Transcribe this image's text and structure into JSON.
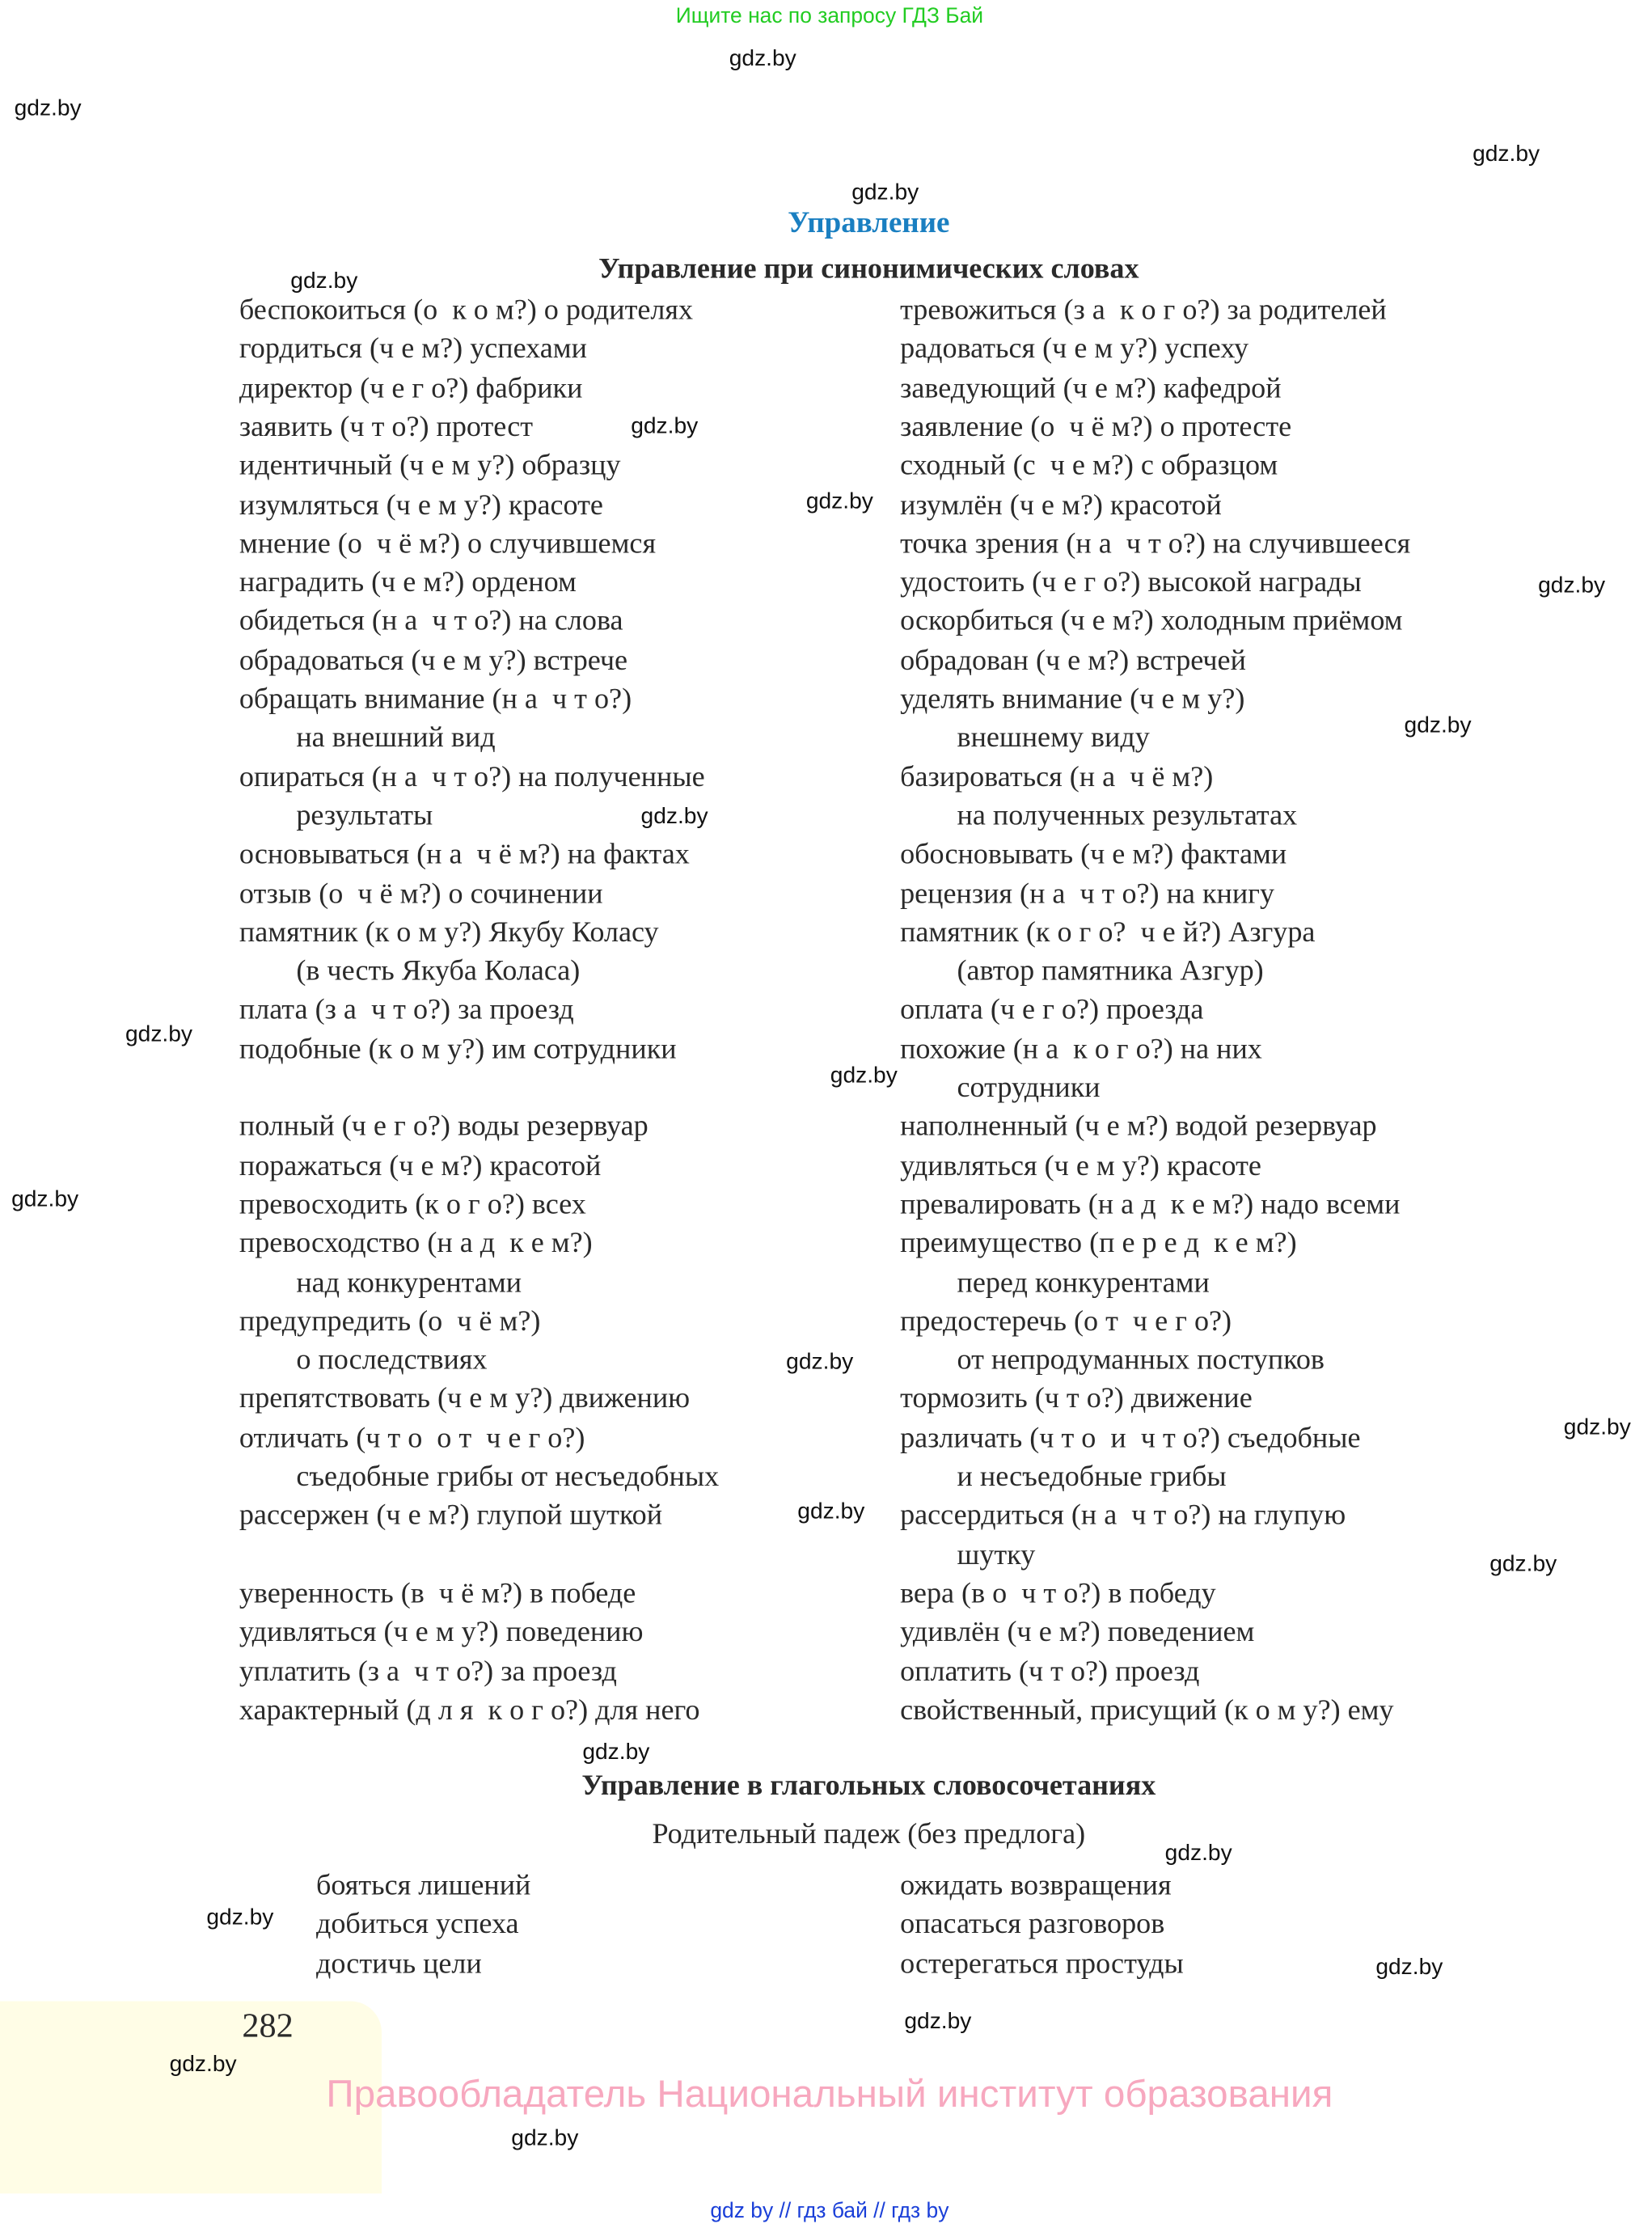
{
  "top_note": "Ищите нас по запросу ГДЗ Бай",
  "watermark": "gdz.by",
  "title": "Управление",
  "section1": {
    "heading": "Управление при синонимических словах",
    "rows": [
      {
        "l": "беспокоиться (о  к о м?) о родителях",
        "r": "тревожиться (з а  к о г о?) за родителей"
      },
      {
        "l": "гордиться (ч е м?) успехами",
        "r": "радоваться (ч е м у?) успеху"
      },
      {
        "l": "директор (ч е г о?) фабрики",
        "r": "заведующий (ч е м?) кафедрой"
      },
      {
        "l": "заявить (ч т о?) протест",
        "r": "заявление (о  ч ё м?) о протесте"
      },
      {
        "l": "идентичный (ч е м у?) образцу",
        "r": "сходный (с  ч е м?) с образцом"
      },
      {
        "l": "изумляться (ч е м у?) красоте",
        "r": "изумлён (ч е м?) красотой"
      },
      {
        "l": "мнение (о  ч ё м?) о случившемся",
        "r": "точка зрения (н а  ч т о?) на случившееся"
      },
      {
        "l": "наградить (ч е м?) орденом",
        "r": "удостоить (ч е г о?) высокой награды"
      },
      {
        "l": "обидеться (н а  ч т о?) на слова",
        "r": "оскорбиться (ч е м?) холодным приёмом"
      },
      {
        "l": "обрадоваться (ч е м у?) встрече",
        "r": "обрадован (ч е м?) встречей"
      },
      {
        "l": "обращать внимание (н а  ч т о?)",
        "r": "уделять внимание (ч е м у?)"
      },
      {
        "l": "на внешний вид",
        "r": "внешнему виду",
        "cont": true
      },
      {
        "l": "опираться (н а  ч т о?) на полученные",
        "r": "базироваться (н а  ч ё м?)"
      },
      {
        "l": "результаты",
        "r": "на полученных результатах",
        "cont": true
      },
      {
        "l": "основываться (н а  ч ё м?) на фактах",
        "r": "обосновывать (ч е м?) фактами"
      },
      {
        "l": "отзыв (о  ч ё м?) о сочинении",
        "r": "рецензия (н а  ч т о?) на книгу"
      },
      {
        "l": "памятник (к о м у?) Якубу Коласу",
        "r": "памятник (к о г о?  ч е й?) Азгура"
      },
      {
        "l": "(в честь Якуба Коласа)",
        "r": "(автор памятника Азгур)",
        "cont": true
      },
      {
        "l": "плата (з а  ч т о?) за проезд",
        "r": "оплата (ч е г о?) проезда"
      },
      {
        "l": "подобные (к о м у?) им сотрудники",
        "r": "похожие (н а  к о г о?) на них"
      },
      {
        "l": "",
        "r": "сотрудники",
        "cont": true
      },
      {
        "l": "полный (ч е г о?) воды резервуар",
        "r": "наполненный (ч е м?) водой резервуар"
      },
      {
        "l": "поражаться (ч е м?) красотой",
        "r": "удивляться (ч е м у?) красоте"
      },
      {
        "l": "превосходить (к о г о?) всех",
        "r": "превалировать (н а д  к е м?) надо всеми"
      },
      {
        "l": "превосходство (н а д  к е м?)",
        "r": "преимущество (п е р е д  к е м?)"
      },
      {
        "l": "над конкурентами",
        "r": "перед конкурентами",
        "cont": true
      },
      {
        "l": "предупредить (о  ч ё м?)",
        "r": "предостеречь (о т  ч е г о?)"
      },
      {
        "l": "о последствиях",
        "r": "от непродуманных поступков",
        "cont": true
      },
      {
        "l": "препятствовать (ч е м у?) движению",
        "r": "тормозить (ч т о?) движение"
      },
      {
        "l": "отличать (ч т о  о т  ч е г о?)",
        "r": "различать (ч т о  и  ч т о?) съедобные"
      },
      {
        "l": "съедобные грибы от несъедобных",
        "r": "и несъедобные грибы",
        "cont": true
      },
      {
        "l": "рассержен (ч е м?) глупой шуткой",
        "r": "рассердиться (н а  ч т о?) на глупую"
      },
      {
        "l": "",
        "r": "шутку",
        "cont": true
      },
      {
        "l": "уверенность (в  ч ё м?) в победе",
        "r": "вера (в о  ч т о?) в победу"
      },
      {
        "l": "удивляться (ч е м у?) поведению",
        "r": "удивлён (ч е м?) поведением"
      },
      {
        "l": "уплатить (з а  ч т о?) за проезд",
        "r": "оплатить (ч т о?) проезд"
      },
      {
        "l": "характерный (д л я  к о г о?) для него",
        "r": "свойственный, присущий (к о м у?) ему"
      }
    ]
  },
  "section2": {
    "heading": "Управление в глагольных словосочетаниях",
    "subheading": "Родительный падеж (без предлога)",
    "rows": [
      {
        "l": "бояться лишений",
        "r": "ожидать возвращения"
      },
      {
        "l": "добиться успеха",
        "r": "опасаться разговоров"
      },
      {
        "l": "достичь цели",
        "r": "остерегаться простуды"
      }
    ]
  },
  "page_number": "282",
  "rights_notice": "Правообладатель Национальный институт образования",
  "footer": "gdz by  //  гдз бай  //  гдз by"
}
